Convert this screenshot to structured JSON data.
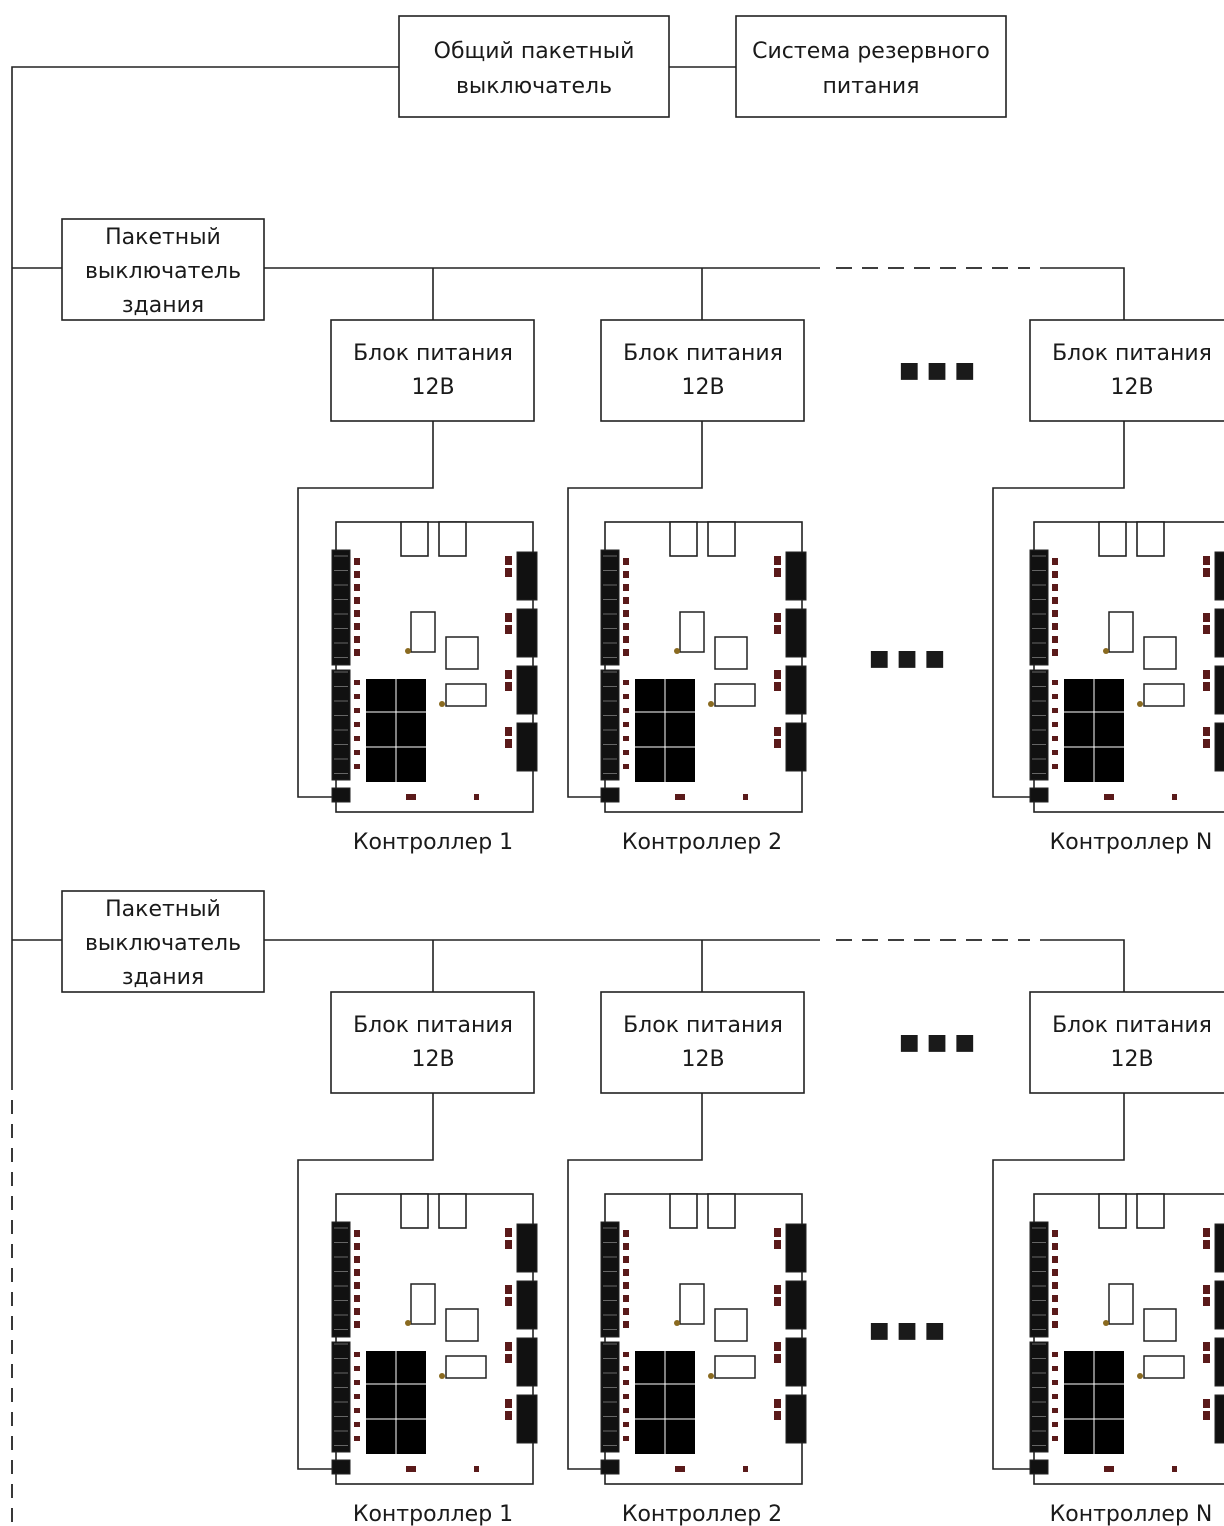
{
  "main_switch": {
    "line1": "Общий пакетный",
    "line2": "выключатель"
  },
  "backup_power": {
    "line1": "Система резервного",
    "line2": "питания"
  },
  "building_switch": {
    "line1": "Пакетный",
    "line2": "выключатель",
    "line3": "здания"
  },
  "power_supply": {
    "line1": "Блок питания",
    "line2": "12В"
  },
  "controller_labels": [
    "Контроллер 1",
    "Контроллер 2",
    "Контроллер N"
  ],
  "ellipsis": "■ ■ ■",
  "colors": {
    "line": "#222222",
    "text": "#1a1a1a",
    "board_chip": "#000000",
    "board_led": "#5a1a1a"
  }
}
